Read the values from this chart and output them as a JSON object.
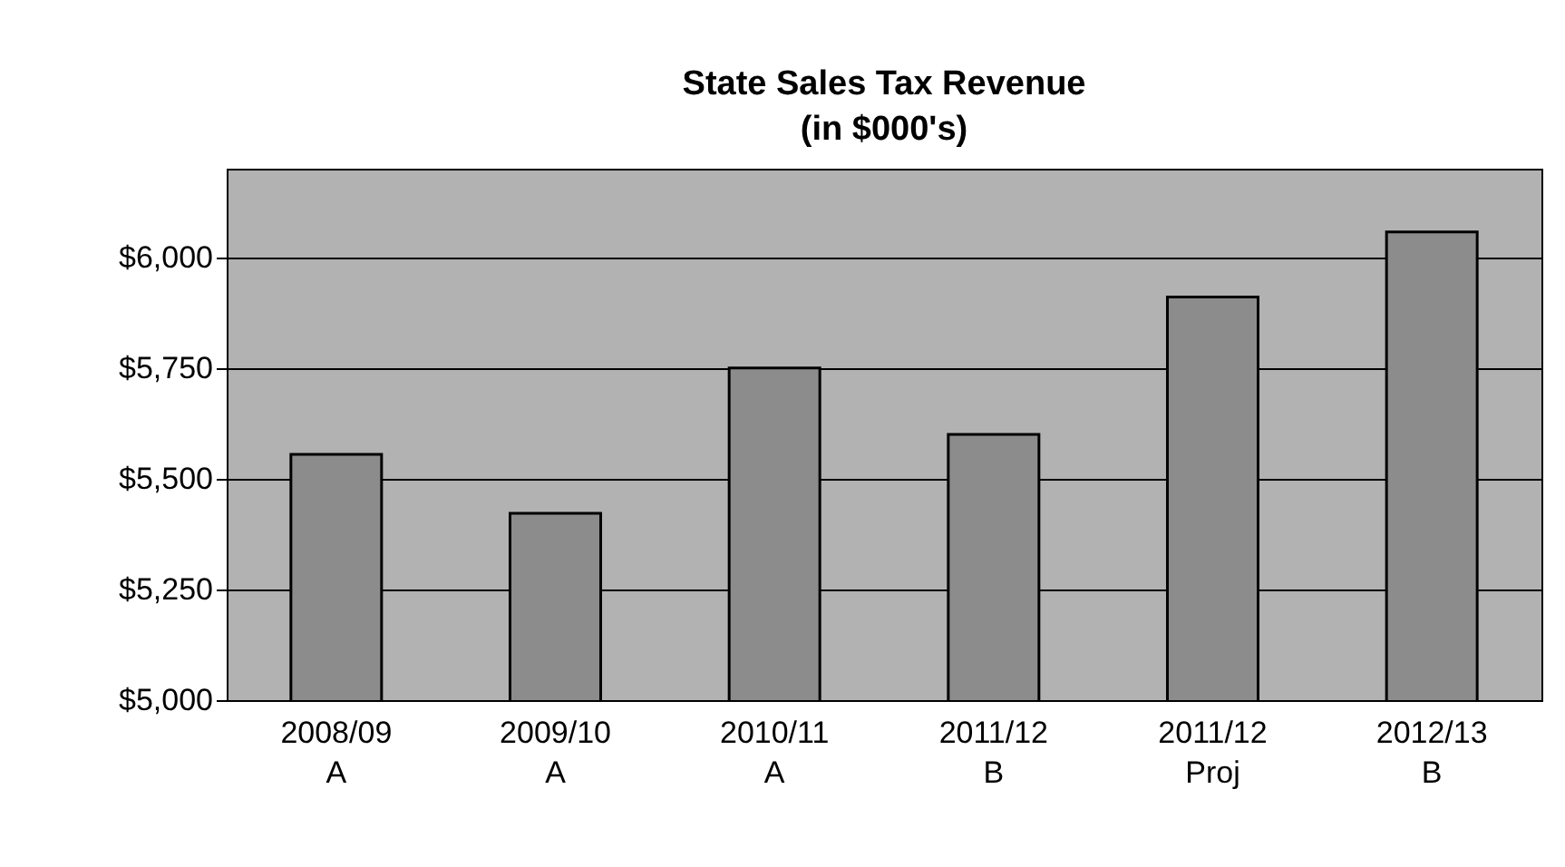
{
  "chart_data": {
    "type": "bar",
    "title": "State Sales Tax Revenue",
    "subtitle": "(in $000's)",
    "categories": [
      "2008/09\nA",
      "2009/10\nA",
      "2010/11\nA",
      "2011/12\nB",
      "2011/12\nProj",
      "2012/13\nB"
    ],
    "values": [
      5555,
      5422,
      5750,
      5600,
      5910,
      6057
    ],
    "color": "#8c8c8c",
    "ylim": [
      5000,
      6200
    ],
    "yticks": [
      {
        "value": 5000,
        "label": "$5,000"
      },
      {
        "value": 5250,
        "label": "$5,250"
      },
      {
        "value": 5500,
        "label": "$5,500"
      },
      {
        "value": 5750,
        "label": "$5,750"
      },
      {
        "value": 6000,
        "label": "$6,000"
      }
    ],
    "grid": "y"
  }
}
